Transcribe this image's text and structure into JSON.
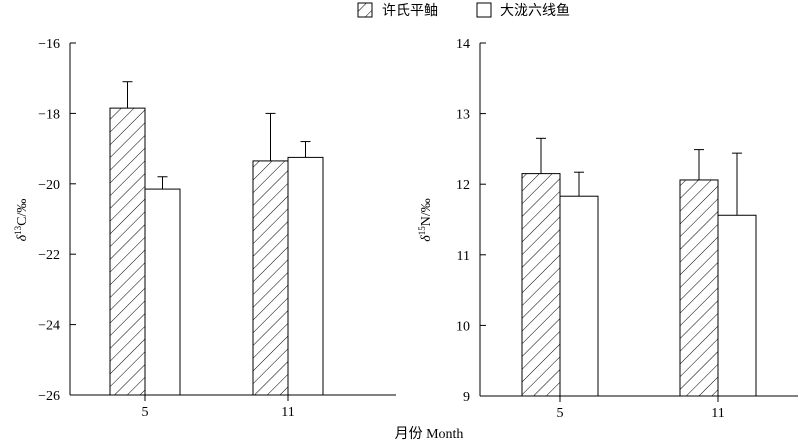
{
  "legend": {
    "placement": "top-center",
    "entries": [
      {
        "label": "许氏平鲉",
        "pattern": "hatched"
      },
      {
        "label": "大泷六线鱼",
        "pattern": "open"
      }
    ]
  },
  "shared_xlabel": "月份 Month",
  "chart_data": [
    {
      "type": "bar",
      "id": "carbon",
      "ylabel_symbol": "δ",
      "ylabel_sup": "13",
      "ylabel_rest": "C/‰",
      "categories": [
        "5",
        "11"
      ],
      "ylim": [
        -26,
        -16
      ],
      "yticks": [
        -16,
        -18,
        -20,
        -22,
        -24,
        -26
      ],
      "ytick_labels": [
        "−16",
        "−18",
        "−20",
        "−22",
        "−24",
        "−26"
      ],
      "grid": false,
      "series": [
        {
          "name": "许氏平鲉",
          "pattern": "hatched",
          "values": [
            -17.85,
            -19.35
          ],
          "errors": [
            0.75,
            1.35
          ]
        },
        {
          "name": "大泷六线鱼",
          "pattern": "open",
          "values": [
            -20.15,
            -19.25
          ],
          "errors": [
            0.35,
            0.45
          ]
        }
      ]
    },
    {
      "type": "bar",
      "id": "nitrogen",
      "ylabel_symbol": "δ",
      "ylabel_sup": "15",
      "ylabel_rest": "N/‰",
      "categories": [
        "5",
        "11"
      ],
      "ylim": [
        9,
        14
      ],
      "yticks": [
        9,
        10,
        11,
        12,
        13,
        14
      ],
      "ytick_labels": [
        "9",
        "10",
        "11",
        "12",
        "13",
        "14"
      ],
      "grid": false,
      "series": [
        {
          "name": "许氏平鲉",
          "pattern": "hatched",
          "values": [
            12.15,
            12.06
          ],
          "errors": [
            0.5,
            0.43
          ]
        },
        {
          "name": "大泷六线鱼",
          "pattern": "open",
          "values": [
            11.83,
            11.56
          ],
          "errors": [
            0.34,
            0.88
          ]
        }
      ]
    }
  ]
}
